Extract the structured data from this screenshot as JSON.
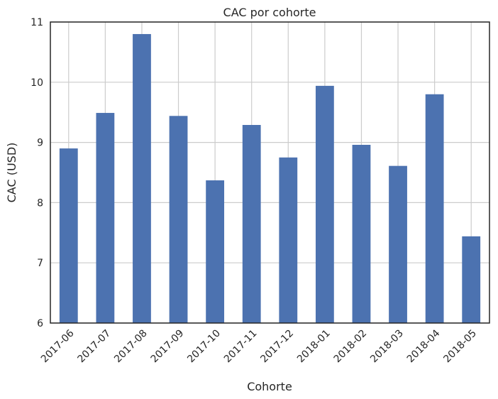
{
  "chart_data": {
    "type": "bar",
    "title": "CAC por cohorte",
    "xlabel": "Cohorte",
    "ylabel": "CAC (USD)",
    "categories": [
      "2017-06",
      "2017-07",
      "2017-08",
      "2017-09",
      "2017-10",
      "2017-11",
      "2017-12",
      "2018-01",
      "2018-02",
      "2018-03",
      "2018-04",
      "2018-05"
    ],
    "values": [
      8.9,
      9.49,
      10.8,
      9.44,
      8.37,
      9.29,
      8.75,
      9.94,
      8.96,
      8.61,
      9.8,
      7.44
    ],
    "ylim": [
      6,
      11
    ],
    "yticks": [
      "6",
      "7",
      "8",
      "9",
      "10",
      "11"
    ],
    "grid": true,
    "bar_color": "#4c72b0",
    "grid_color": "#cccccc",
    "axis_color": "#262626"
  }
}
